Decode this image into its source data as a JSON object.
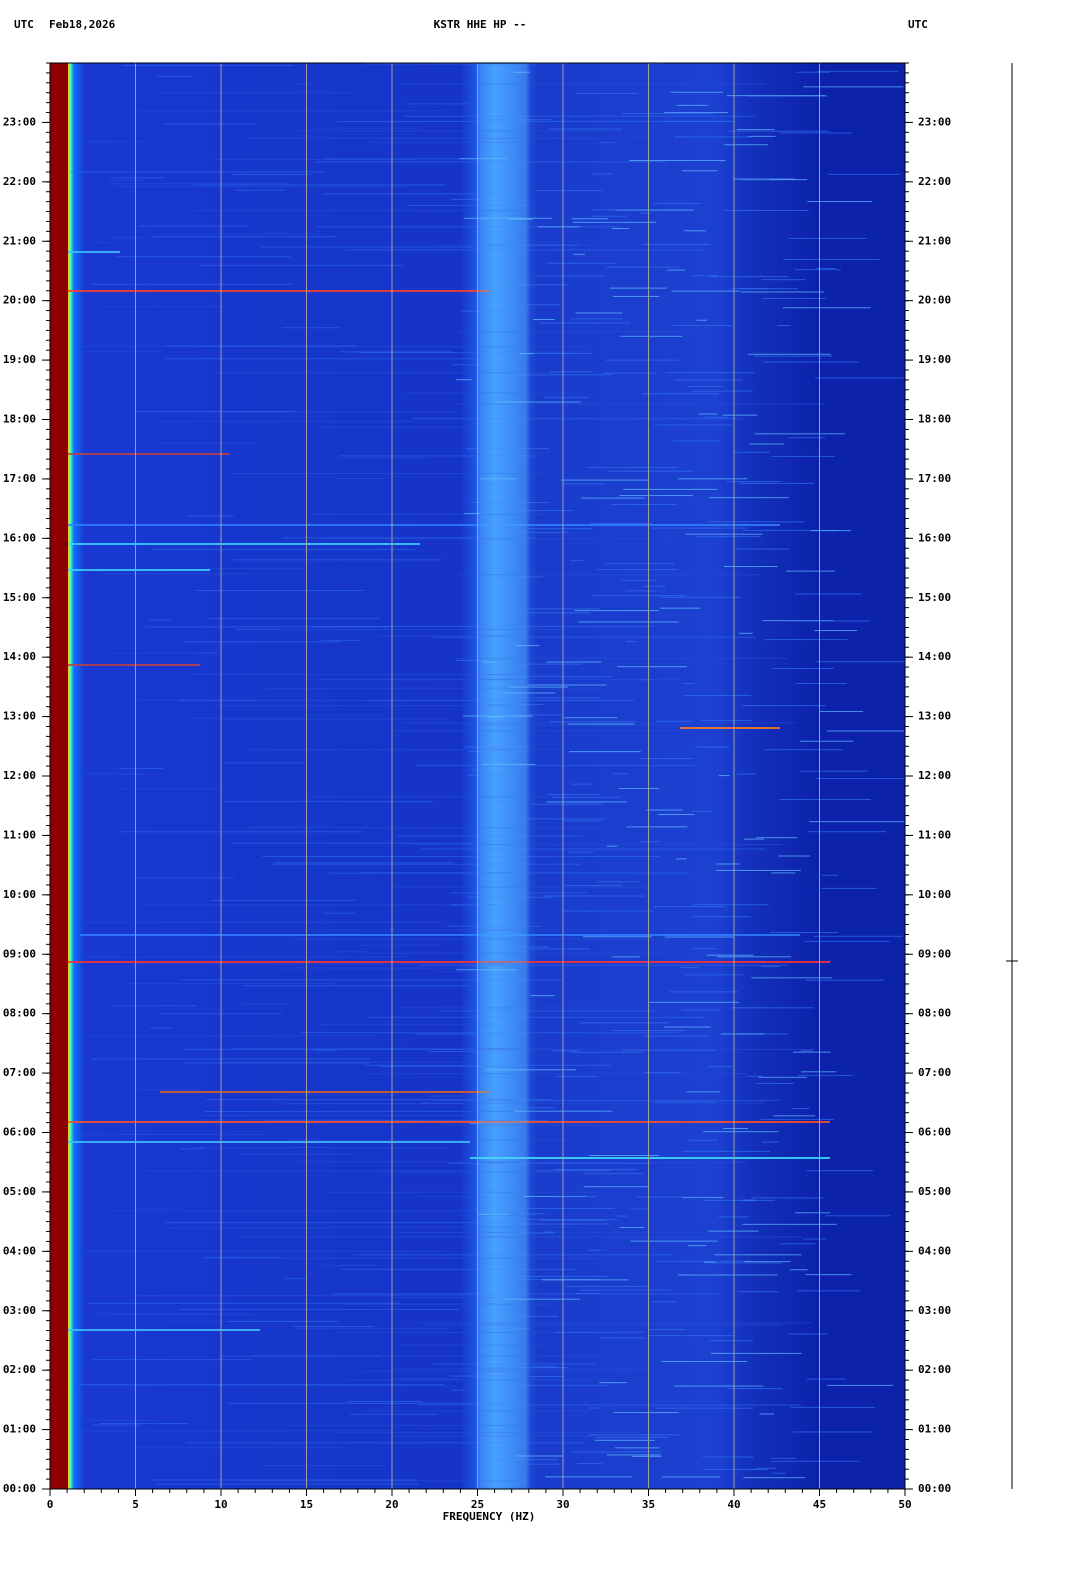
{
  "chart_data": {
    "type": "spectrogram",
    "time_zone": "UTC",
    "date": "Feb18,2026",
    "title": "KSTR HHE HP --",
    "xlabel": "FREQUENCY (HZ)",
    "xlim": [
      0,
      50
    ],
    "xticks": [
      0,
      5,
      10,
      15,
      20,
      25,
      30,
      35,
      40,
      45,
      50
    ],
    "ylim": [
      0,
      24
    ],
    "yticks": [
      {
        "value": 0,
        "label": "00:00"
      },
      {
        "value": 1,
        "label": "01:00"
      },
      {
        "value": 2,
        "label": "02:00"
      },
      {
        "value": 3,
        "label": "03:00"
      },
      {
        "value": 4,
        "label": "04:00"
      },
      {
        "value": 5,
        "label": "05:00"
      },
      {
        "value": 6,
        "label": "06:00"
      },
      {
        "value": 7,
        "label": "07:00"
      },
      {
        "value": 8,
        "label": "08:00"
      },
      {
        "value": 9,
        "label": "09:00"
      },
      {
        "value": 10,
        "label": "10:00"
      },
      {
        "value": 11,
        "label": "11:00"
      },
      {
        "value": 12,
        "label": "12:00"
      },
      {
        "value": 13,
        "label": "13:00"
      },
      {
        "value": 14,
        "label": "14:00"
      },
      {
        "value": 15,
        "label": "15:00"
      },
      {
        "value": 16,
        "label": "16:00"
      },
      {
        "value": 17,
        "label": "17:00"
      },
      {
        "value": 18,
        "label": "18:00"
      },
      {
        "value": 19,
        "label": "19:00"
      },
      {
        "value": 20,
        "label": "20:00"
      },
      {
        "value": 21,
        "label": "21:00"
      },
      {
        "value": 22,
        "label": "22:00"
      },
      {
        "value": 23,
        "label": "23:00"
      }
    ],
    "grid": true,
    "grid_color": "#a0a0a0"
  }
}
